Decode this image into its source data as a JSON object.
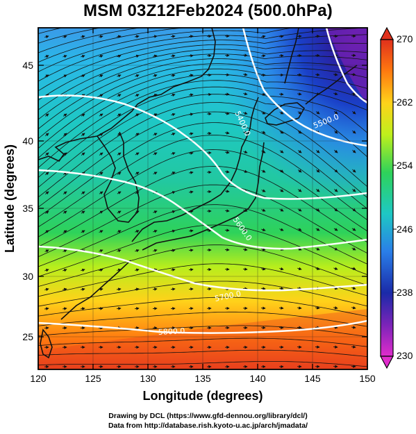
{
  "title": "MSM 03Z12Feb2024 (500.0hPa)",
  "x_axis": {
    "label": "Longitude (degrees)",
    "range": [
      120,
      150
    ],
    "ticks": [
      "120",
      "125",
      "130",
      "135",
      "140",
      "145",
      "150"
    ]
  },
  "y_axis": {
    "label": "Latitude  (degrees)",
    "range": [
      22.5,
      47.6
    ],
    "ticks": [
      "25",
      "30",
      "35",
      "40",
      "45"
    ]
  },
  "colorbar": {
    "min": 230,
    "max": 270,
    "labels": [
      "270",
      "262",
      "254",
      "246",
      "238",
      "230"
    ],
    "colors": [
      "#e0301c",
      "#ff7a10",
      "#ffd21a",
      "#bff01c",
      "#2ed25a",
      "#1ec8c4",
      "#2a7ee8",
      "#1a2aa8",
      "#7a24b8",
      "#e02ccc"
    ]
  },
  "contours": {
    "labels": [
      "5400.0",
      "5500.0",
      "5600.0",
      "5700.0",
      "5800.0"
    ],
    "color": "#ffffff"
  },
  "credit": {
    "line1": "Drawing by DCL (https://www.gfd-dennou.org/library/dcl/)",
    "line2": "Data from http://database.rish.kyoto-u.ac.jp/arch/jmadata/"
  }
}
